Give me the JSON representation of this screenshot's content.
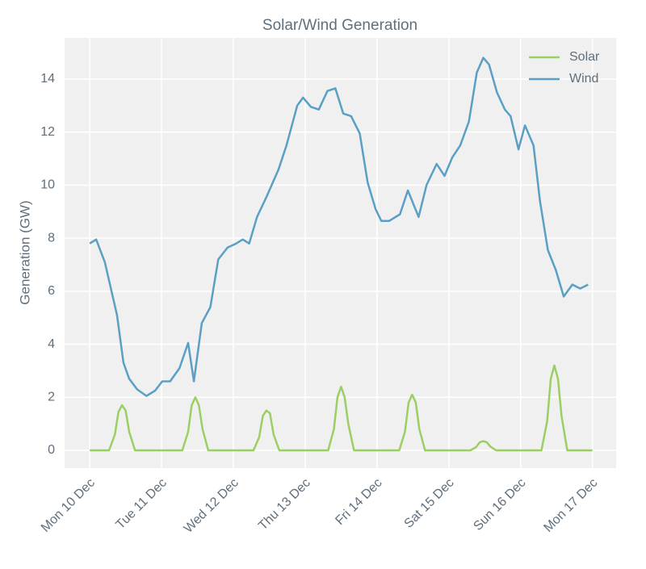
{
  "chart_data": {
    "type": "line",
    "title": "Solar/Wind Generation",
    "y_label": "Generation (GW)",
    "xlim": [
      -0.35,
      7.33
    ],
    "ylim": [
      -0.67,
      15.55
    ],
    "xticks": [
      {
        "value": 0,
        "label": "Mon 10 Dec"
      },
      {
        "value": 1,
        "label": "Tue 11 Dec"
      },
      {
        "value": 2,
        "label": "Wed 12 Dec"
      },
      {
        "value": 3,
        "label": "Thu 13 Dec"
      },
      {
        "value": 4,
        "label": "Fri 14 Dec"
      },
      {
        "value": 5,
        "label": "Sat 15 Dec"
      },
      {
        "value": 6,
        "label": "Sun 16 Dec"
      },
      {
        "value": 7,
        "label": "Mon 17 Dec"
      }
    ],
    "yticks": [
      0,
      2,
      4,
      6,
      8,
      10,
      12,
      14
    ],
    "grid": true,
    "legend": "upper right",
    "series": [
      {
        "name": "Solar",
        "color": "#9ccf63",
        "x": [
          0,
          0.27,
          0.35,
          0.4,
          0.45,
          0.5,
          0.55,
          0.63,
          1.29,
          1.37,
          1.42,
          1.47,
          1.52,
          1.57,
          1.65,
          2.28,
          2.36,
          2.41,
          2.46,
          2.51,
          2.56,
          2.64,
          3.32,
          3.4,
          3.45,
          3.5,
          3.55,
          3.6,
          3.68,
          4.31,
          4.39,
          4.44,
          4.49,
          4.54,
          4.59,
          4.67,
          5.3,
          5.38,
          5.43,
          5.48,
          5.53,
          5.58,
          5.66,
          6.29,
          6.37,
          6.42,
          6.47,
          6.52,
          6.57,
          6.65,
          7
        ],
        "values": [
          0,
          0,
          0.6,
          1.45,
          1.7,
          1.5,
          0.7,
          0,
          0,
          0.7,
          1.7,
          2.0,
          1.7,
          0.8,
          0,
          0,
          0.5,
          1.3,
          1.5,
          1.4,
          0.6,
          0,
          0,
          0.8,
          2.0,
          2.4,
          2.0,
          1.0,
          0,
          0,
          0.7,
          1.8,
          2.1,
          1.8,
          0.8,
          0,
          0,
          0.12,
          0.3,
          0.35,
          0.3,
          0.14,
          0,
          0,
          1.1,
          2.7,
          3.2,
          2.7,
          1.3,
          0,
          0
        ]
      },
      {
        "name": "Wind",
        "color": "#5a9fc4",
        "x": [
          0,
          0.09,
          0.21,
          0.38,
          0.47,
          0.55,
          0.66,
          0.79,
          0.91,
          1.01,
          1.12,
          1.25,
          1.37,
          1.45,
          1.56,
          1.68,
          1.79,
          1.92,
          2.04,
          2.13,
          2.22,
          2.33,
          2.46,
          2.63,
          2.74,
          2.89,
          2.97,
          3.08,
          3.19,
          3.31,
          3.42,
          3.53,
          3.64,
          3.76,
          3.87,
          3.98,
          4.06,
          4.17,
          4.32,
          4.43,
          4.58,
          4.69,
          4.83,
          4.94,
          5.05,
          5.16,
          5.28,
          5.39,
          5.48,
          5.56,
          5.67,
          5.78,
          5.86,
          5.97,
          6.06,
          6.18,
          6.27,
          6.38,
          6.49,
          6.6,
          6.72,
          6.83,
          6.94
        ],
        "values": [
          7.8,
          7.95,
          7.1,
          5.1,
          3.3,
          2.7,
          2.3,
          2.05,
          2.25,
          2.6,
          2.6,
          3.1,
          4.05,
          2.6,
          4.8,
          5.4,
          7.2,
          7.65,
          7.8,
          7.95,
          7.8,
          8.8,
          9.55,
          10.6,
          11.5,
          13.0,
          13.3,
          12.95,
          12.85,
          13.55,
          13.65,
          12.7,
          12.6,
          11.95,
          10.1,
          9.1,
          8.65,
          8.65,
          8.9,
          9.8,
          8.8,
          10.0,
          10.8,
          10.35,
          11.05,
          11.5,
          12.4,
          14.25,
          14.8,
          14.55,
          13.5,
          12.85,
          12.6,
          11.35,
          12.25,
          11.5,
          9.4,
          7.55,
          6.8,
          5.8,
          6.25,
          6.1,
          6.25
        ]
      }
    ]
  }
}
